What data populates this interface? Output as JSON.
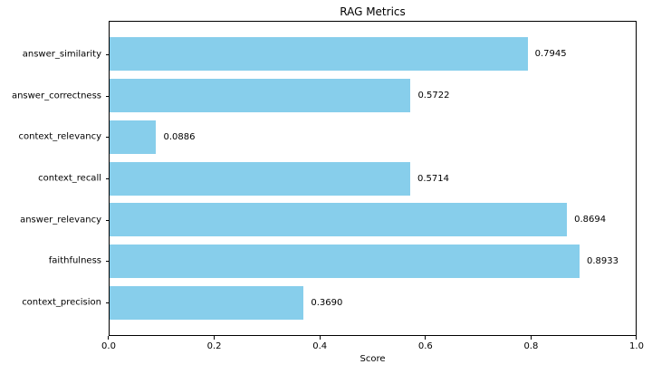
{
  "title": "RAG Metrics",
  "chart_data": {
    "type": "bar",
    "orientation": "horizontal",
    "title": "RAG Metrics",
    "xlabel": "Score",
    "ylabel": "",
    "xlim": [
      0.0,
      1.0
    ],
    "x_ticks": [
      "0.0",
      "0.2",
      "0.4",
      "0.6",
      "0.8",
      "1.0"
    ],
    "grid": false,
    "legend": false,
    "bar_color": "#87CEEB",
    "value_label_decimals": 4,
    "categories": [
      "answer_similarity",
      "answer_correctness",
      "context_relevancy",
      "context_recall",
      "answer_relevancy",
      "faithfulness",
      "context_precision"
    ],
    "values": [
      0.7945,
      0.5722,
      0.0886,
      0.5714,
      0.8694,
      0.8933,
      0.369
    ],
    "value_labels": [
      "0.7945",
      "0.5722",
      "0.0886",
      "0.5714",
      "0.8694",
      "0.8933",
      "0.3690"
    ]
  },
  "colors": {
    "bar": "#87CEEB",
    "text": "#000000",
    "spine": "#000000",
    "background": "#ffffff"
  }
}
